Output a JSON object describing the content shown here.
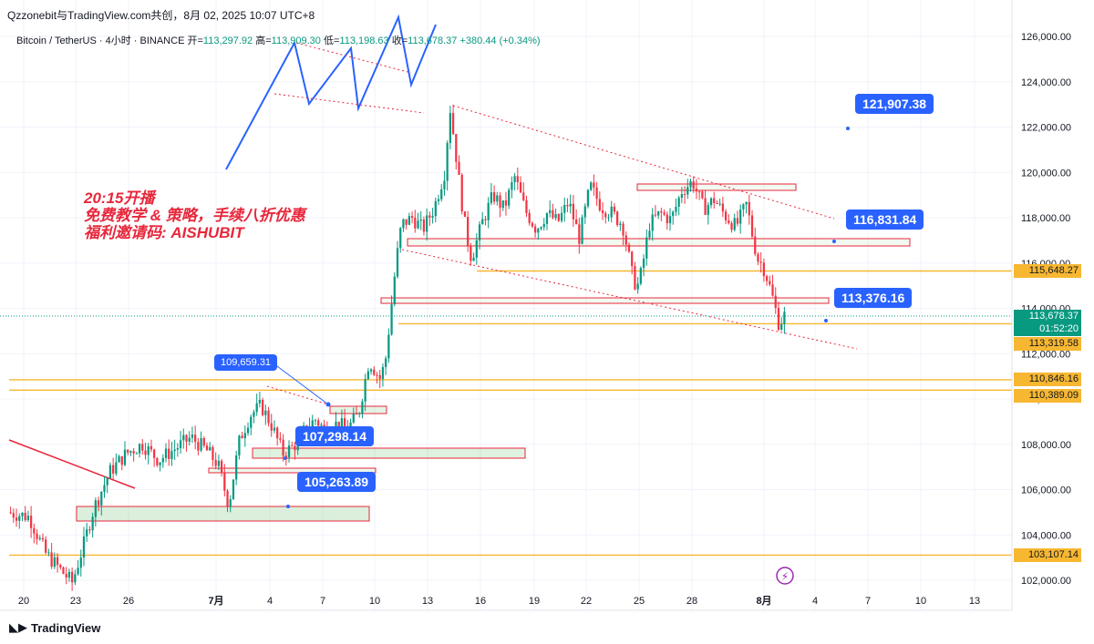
{
  "header": {
    "title": "Qzzonebit与TradingView.com共创，8月 02, 2025 10:07 UTC+8"
  },
  "symbol": {
    "name": "Bitcoin / TetherUS · 4小时 · BINANCE",
    "open_label": "开=",
    "open": "113,297.92",
    "high_label": "高=",
    "high": "113,909.30",
    "low_label": "低=",
    "low": "113,198.63",
    "close_label": "收=",
    "close": "113,678.37",
    "change": "+380.44 (+0.34%)"
  },
  "promo": {
    "line1": "20:15开播",
    "line2": "免费教学 & 策略，手续八折优惠",
    "line3": "福利邀请码: AISHUBIT"
  },
  "callouts": {
    "c1": "121,907.38",
    "c2": "116,831.84",
    "c3": "113,376.16",
    "c4": "109,659.31",
    "c5": "107,298.14",
    "c6": "105,263.89"
  },
  "price_tags": {
    "current": "113,678.37",
    "countdown": "01:52:20",
    "t1": "115,648.27",
    "t2": "113,319.58",
    "t3": "110,846.16",
    "t4": "110,389.09",
    "t5": "103,107.14"
  },
  "footer": {
    "brand": "TradingView"
  },
  "colors": {
    "up": "#089981",
    "down": "#f23645",
    "level": "#f7b731",
    "callout": "#2962ff",
    "promo": "#e8273b"
  },
  "chart_data": {
    "type": "candlestick",
    "title": "Bitcoin / TetherUS · 4小时 · BINANCE",
    "ylim": [
      101500,
      126800
    ],
    "y_ticks": [
      102000,
      104000,
      106000,
      108000,
      110000,
      112000,
      114000,
      116000,
      118000,
      120000,
      122000,
      124000,
      126000
    ],
    "y_tick_labels": [
      "102,000.00",
      "104,000.00",
      "106,000.00",
      "108,000.00",
      "110,000.00",
      "112,000.00",
      "114,000.00",
      "116,000.00",
      "118,000.00",
      "120,000.00",
      "122,000.00",
      "124,000.00",
      "126,000.00"
    ],
    "x_ticks": [
      "20",
      "23",
      "26",
      "7月",
      "4",
      "7",
      "10",
      "13",
      "16",
      "19",
      "22",
      "25",
      "28",
      "8月",
      "4",
      "7",
      "10",
      "13"
    ],
    "horizontal_levels": [
      115648.27,
      113319.58,
      110846.16,
      110389.09,
      103107.14
    ],
    "close_path": [
      [
        0,
        105000
      ],
      [
        4,
        104800
      ],
      [
        7,
        103200
      ],
      [
        10,
        102400
      ],
      [
        12,
        101900
      ],
      [
        14,
        103500
      ],
      [
        16,
        105200
      ],
      [
        19,
        106800
      ],
      [
        22,
        107600
      ],
      [
        25,
        108000
      ],
      [
        28,
        107300
      ],
      [
        31,
        107800
      ],
      [
        34,
        108300
      ],
      [
        37,
        107700
      ],
      [
        39,
        107100
      ],
      [
        40,
        106200
      ],
      [
        41,
        105300
      ],
      [
        42,
        106800
      ],
      [
        43,
        108200
      ],
      [
        45,
        109300
      ],
      [
        47,
        109700
      ],
      [
        49,
        108800
      ],
      [
        51,
        107600
      ],
      [
        53,
        107900
      ],
      [
        55,
        108600
      ],
      [
        57,
        109100
      ],
      [
        59,
        108600
      ],
      [
        61,
        108900
      ],
      [
        63,
        108700
      ],
      [
        65,
        109300
      ],
      [
        67,
        111700
      ],
      [
        69,
        110900
      ],
      [
        70,
        111600
      ],
      [
        71,
        113800
      ],
      [
        72,
        116000
      ],
      [
        73,
        117700
      ],
      [
        75,
        118000
      ],
      [
        77,
        117500
      ],
      [
        79,
        118400
      ],
      [
        81,
        120000
      ],
      [
        82,
        122900
      ],
      [
        83,
        121000
      ],
      [
        84,
        119000
      ],
      [
        85,
        117300
      ],
      [
        86,
        116200
      ],
      [
        88,
        117800
      ],
      [
        90,
        119000
      ],
      [
        92,
        118400
      ],
      [
        94,
        119800
      ],
      [
        96,
        118300
      ],
      [
        98,
        117500
      ],
      [
        100,
        118200
      ],
      [
        102,
        117800
      ],
      [
        104,
        118700
      ],
      [
        106,
        117100
      ],
      [
        108,
        119400
      ],
      [
        110,
        118500
      ],
      [
        112,
        118200
      ],
      [
        114,
        117700
      ],
      [
        115,
        116500
      ],
      [
        116,
        115200
      ],
      [
        117,
        115000
      ],
      [
        118,
        116300
      ],
      [
        119,
        117700
      ],
      [
        121,
        118200
      ],
      [
        123,
        117900
      ],
      [
        125,
        119200
      ],
      [
        127,
        119600
      ],
      [
        129,
        118400
      ],
      [
        131,
        118800
      ],
      [
        133,
        118100
      ],
      [
        135,
        117600
      ],
      [
        137,
        118600
      ],
      [
        138,
        117300
      ],
      [
        139,
        116200
      ],
      [
        140,
        115900
      ],
      [
        141,
        115200
      ],
      [
        142,
        114300
      ],
      [
        143,
        113300
      ],
      [
        144,
        113678.37
      ]
    ]
  }
}
